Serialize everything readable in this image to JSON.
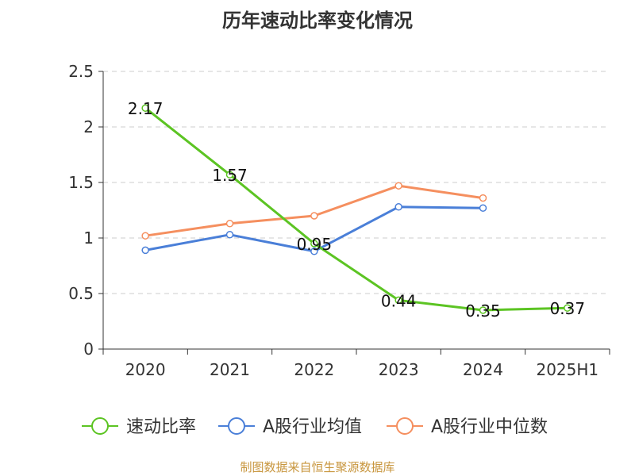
{
  "chart_data": {
    "type": "line",
    "title": "历年速动比率变化情况",
    "categories": [
      "2020",
      "2021",
      "2022",
      "2023",
      "2024",
      "2025H1"
    ],
    "ylim": [
      0,
      2.5
    ],
    "yticks": [
      "0",
      "0.5",
      "1",
      "1.5",
      "2",
      "2.5"
    ],
    "grid": true,
    "legend_position": "bottom",
    "series": [
      {
        "name": "速动比率",
        "color": "#5cc423",
        "labels": true,
        "values": [
          2.17,
          1.57,
          0.95,
          0.44,
          0.35,
          0.37
        ],
        "label_text": [
          "2.17",
          "1.57",
          "0.95",
          "0.44",
          "0.35",
          "0.37"
        ]
      },
      {
        "name": "A股行业均值",
        "color": "#4a7fd8",
        "labels": false,
        "values": [
          0.89,
          1.03,
          0.88,
          1.28,
          1.27,
          null
        ]
      },
      {
        "name": "A股行业中位数",
        "color": "#f58f5f",
        "labels": false,
        "values": [
          1.02,
          1.13,
          1.2,
          1.47,
          1.36,
          null
        ]
      }
    ]
  },
  "source_note": "制图数据来自恒生聚源数据库"
}
